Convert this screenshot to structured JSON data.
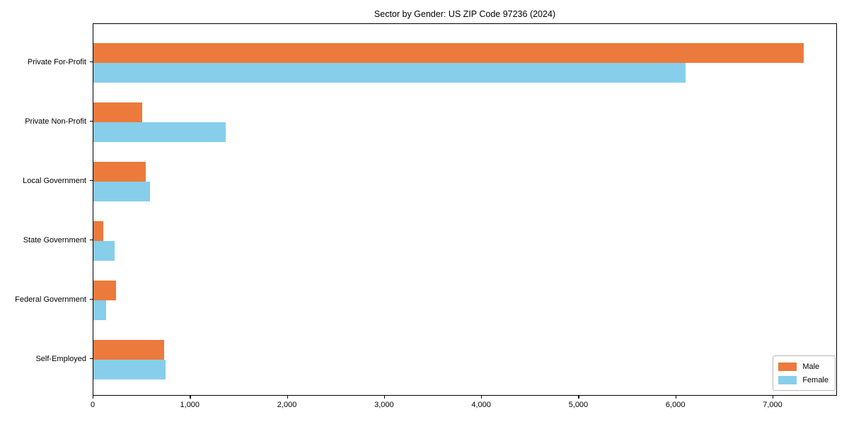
{
  "title": "Sector by Gender: US ZIP Code 97236 (2024)",
  "chart_data": {
    "type": "bar",
    "orientation": "horizontal",
    "title": "Sector by Gender: US ZIP Code 97236 (2024)",
    "categories": [
      "Private For-Profit",
      "Private Non-Profit",
      "Local Government",
      "State Government",
      "Federal Government",
      "Self-Employed"
    ],
    "series": [
      {
        "name": "Male",
        "color": "#ec7a3c",
        "values": [
          7310,
          500,
          540,
          100,
          230,
          730
        ]
      },
      {
        "name": "Female",
        "color": "#87ceeb",
        "values": [
          6100,
          1360,
          580,
          220,
          130,
          740
        ]
      }
    ],
    "xlabel": "",
    "ylabel": "",
    "xlim": [
      0,
      7663
    ],
    "xticks": [
      0,
      1000,
      2000,
      3000,
      4000,
      5000,
      6000,
      7000
    ],
    "xtick_labels": [
      "0",
      "1,000",
      "2,000",
      "3,000",
      "4,000",
      "5,000",
      "6,000",
      "7,000"
    ],
    "grid": false,
    "legend_position": "lower right"
  }
}
